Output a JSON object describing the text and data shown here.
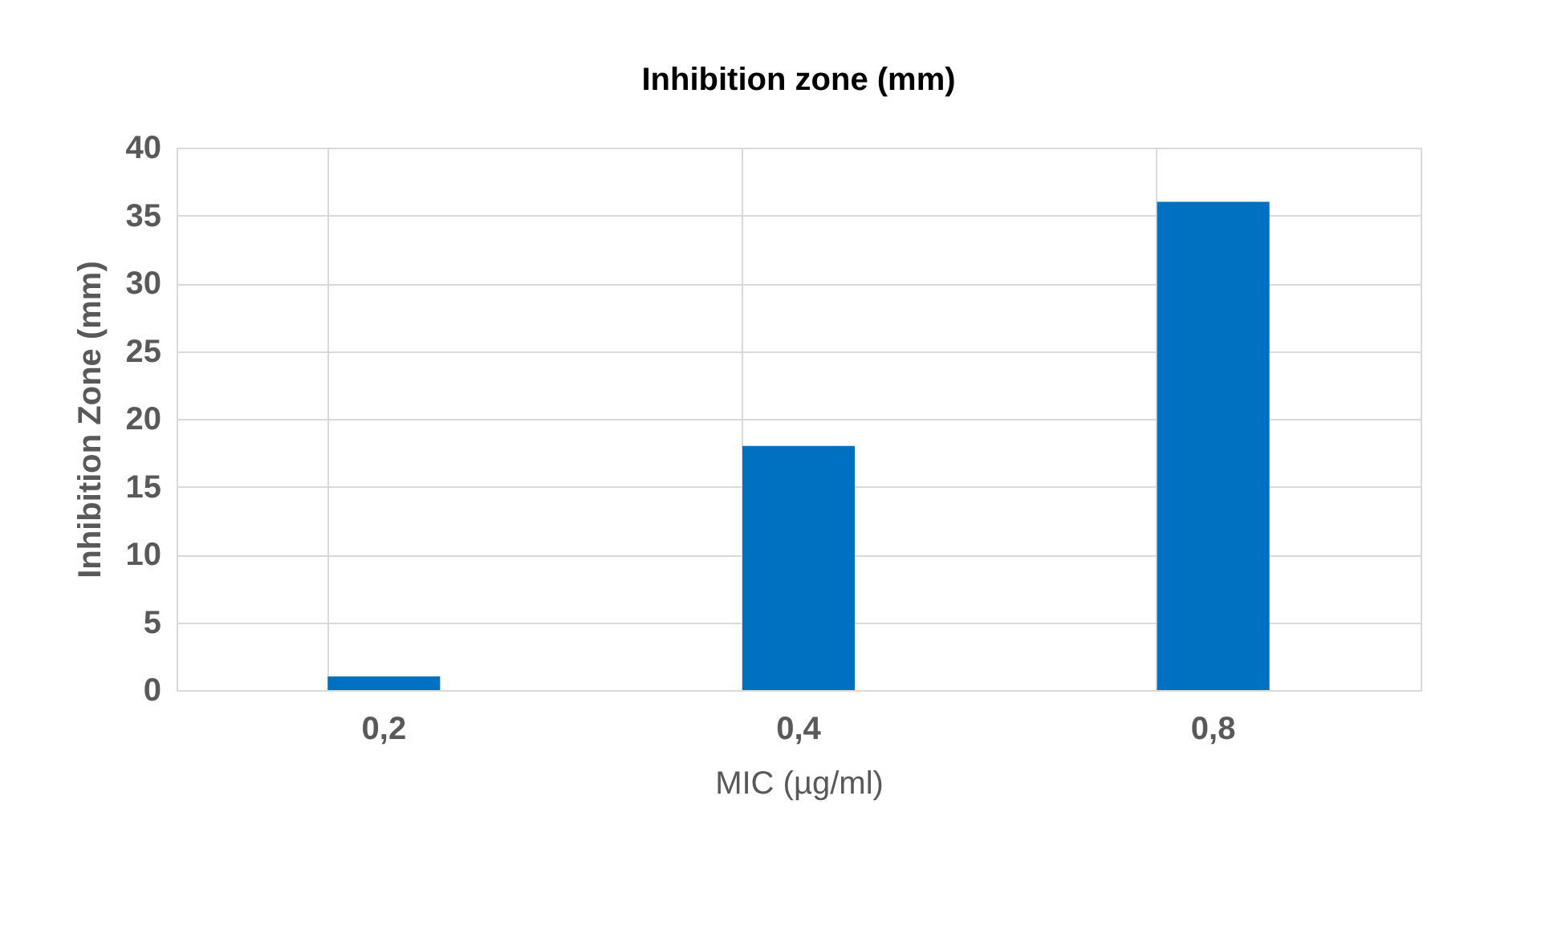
{
  "chart_data": {
    "type": "bar",
    "title": "Inhibition zone (mm)",
    "xlabel": "MIC (µg/ml)",
    "ylabel": "Inhibition Zone (mm)",
    "categories": [
      "0,2",
      "0,4",
      "0,8"
    ],
    "values": [
      1,
      18,
      36
    ],
    "color": "#0070c0",
    "ylim": [
      0,
      40
    ],
    "yticks": [
      0,
      5,
      10,
      15,
      20,
      25,
      30,
      35,
      40
    ],
    "grid": true
  }
}
